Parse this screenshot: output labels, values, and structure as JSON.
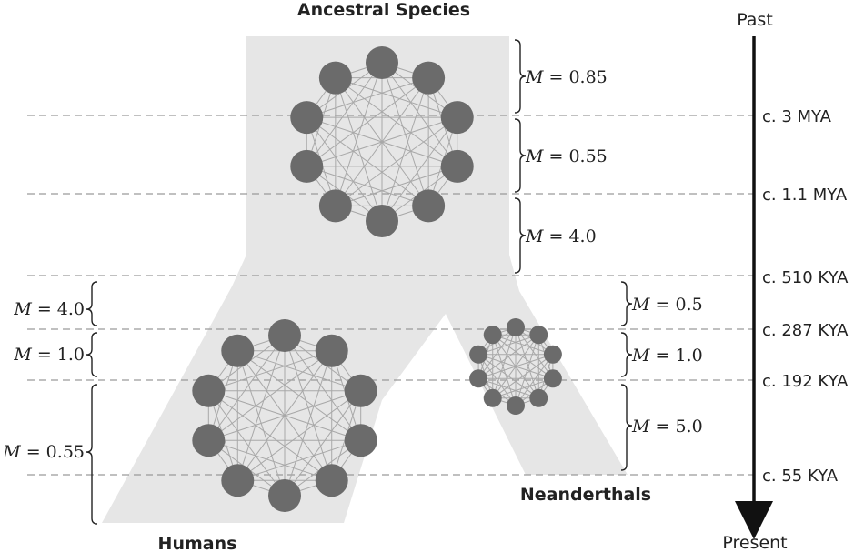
{
  "titles": {
    "ancestral": "Ancestral Species",
    "humans": "Humans",
    "neanderthals": "Neanderthals"
  },
  "axis": {
    "top": "Past",
    "bottom": "Present"
  },
  "time_labels": [
    "c. 3 MYA",
    "c. 1.1 MYA",
    "c. 510 KYA",
    "c. 287 KYA",
    "c. 192 KYA",
    "c. 55 KYA"
  ],
  "migration": {
    "ancestral": [
      {
        "var": "M",
        "eq": " = 0.85"
      },
      {
        "var": "M",
        "eq": " = 0.55"
      },
      {
        "var": "M",
        "eq": " = 4.0"
      }
    ],
    "humans": [
      {
        "var": "M",
        "eq": " = 4.0"
      },
      {
        "var": "M",
        "eq": " = 1.0"
      },
      {
        "var": "M",
        "eq": " = 0.55"
      }
    ],
    "neanderthals": [
      {
        "var": "M",
        "eq": " = 0.5"
      },
      {
        "var": "M",
        "eq": " = 1.0"
      },
      {
        "var": "M",
        "eq": " = 5.0"
      }
    ]
  },
  "colors": {
    "region": "#e6e6e6",
    "node": "#6b6b6b",
    "edge": "#a8a8a8",
    "text": "#222222"
  }
}
